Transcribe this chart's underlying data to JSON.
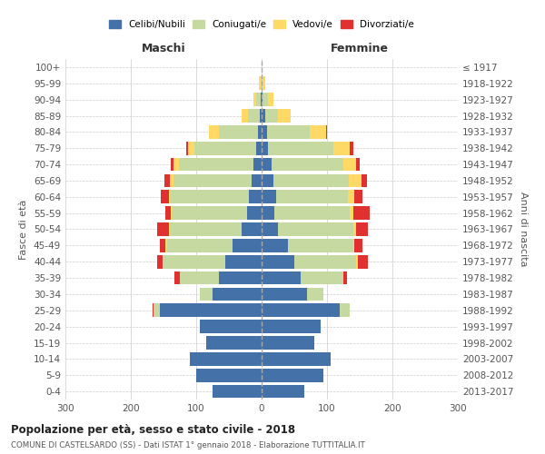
{
  "age_groups": [
    "0-4",
    "5-9",
    "10-14",
    "15-19",
    "20-24",
    "25-29",
    "30-34",
    "35-39",
    "40-44",
    "45-49",
    "50-54",
    "55-59",
    "60-64",
    "65-69",
    "70-74",
    "75-79",
    "80-84",
    "85-89",
    "90-94",
    "95-99",
    "100+"
  ],
  "birth_years": [
    "2013-2017",
    "2008-2012",
    "2003-2007",
    "1998-2002",
    "1993-1997",
    "1988-1992",
    "1983-1987",
    "1978-1982",
    "1973-1977",
    "1968-1972",
    "1963-1967",
    "1958-1962",
    "1953-1957",
    "1948-1952",
    "1943-1947",
    "1938-1942",
    "1933-1937",
    "1928-1932",
    "1923-1927",
    "1918-1922",
    "≤ 1917"
  ],
  "male": {
    "celibi": [
      75,
      100,
      110,
      85,
      95,
      155,
      75,
      65,
      55,
      45,
      30,
      22,
      20,
      15,
      12,
      8,
      5,
      3,
      2,
      0,
      0
    ],
    "coniugati": [
      0,
      0,
      0,
      0,
      0,
      10,
      20,
      60,
      95,
      100,
      110,
      115,
      120,
      120,
      115,
      95,
      60,
      18,
      6,
      2,
      0
    ],
    "vedovi": [
      0,
      0,
      0,
      0,
      0,
      0,
      0,
      0,
      2,
      2,
      2,
      2,
      2,
      5,
      8,
      10,
      15,
      10,
      5,
      2,
      0
    ],
    "divorziati": [
      0,
      0,
      0,
      0,
      0,
      2,
      0,
      8,
      8,
      8,
      18,
      8,
      12,
      8,
      4,
      2,
      0,
      0,
      0,
      0,
      0
    ]
  },
  "female": {
    "nubili": [
      65,
      95,
      105,
      80,
      90,
      120,
      70,
      60,
      50,
      40,
      25,
      20,
      22,
      18,
      15,
      10,
      8,
      5,
      2,
      0,
      0
    ],
    "coniugate": [
      0,
      0,
      0,
      0,
      0,
      15,
      25,
      65,
      95,
      100,
      115,
      115,
      110,
      115,
      110,
      100,
      65,
      20,
      8,
      2,
      0
    ],
    "vedove": [
      0,
      0,
      0,
      0,
      0,
      0,
      0,
      0,
      2,
      2,
      5,
      5,
      10,
      20,
      20,
      25,
      25,
      20,
      8,
      3,
      0
    ],
    "divorziate": [
      0,
      0,
      0,
      0,
      0,
      0,
      0,
      5,
      15,
      12,
      18,
      25,
      12,
      8,
      5,
      5,
      2,
      0,
      0,
      0,
      0
    ]
  },
  "colors": {
    "celibi": "#4472a8",
    "coniugati": "#c5d9a0",
    "vedovi": "#ffd966",
    "divorziati": "#e03030"
  },
  "legend_labels": [
    "Celibi/Nubili",
    "Coniugati/e",
    "Vedovi/e",
    "Divorziati/e"
  ],
  "title": "Popolazione per età, sesso e stato civile - 2018",
  "subtitle": "COMUNE DI CASTELSARDO (SS) - Dati ISTAT 1° gennaio 2018 - Elaborazione TUTTITALIA.IT",
  "xlabel_left": "Maschi",
  "xlabel_right": "Femmine",
  "ylabel_left": "Fasce di età",
  "ylabel_right": "Anni di nascita",
  "xlim": 300,
  "background_color": "#ffffff",
  "grid_color": "#cccccc"
}
